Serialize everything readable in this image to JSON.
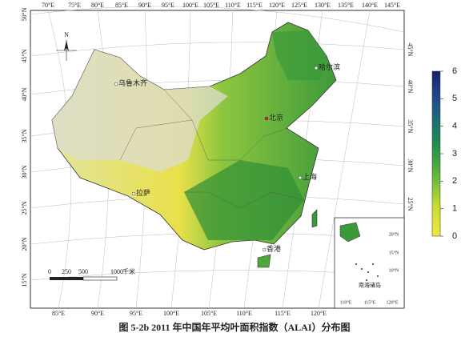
{
  "caption": "图 5-2b 2011 年中国年平均叶面积指数（ALAI）分布图",
  "north": "N",
  "longitude_top": [
    "70°E",
    "75°E",
    "80°E",
    "85°E",
    "90°E",
    "95°E",
    "100°E",
    "105°E",
    "110°E",
    "115°E",
    "120°E",
    "125°E",
    "130°E",
    "135°E",
    "140°E",
    "145°E"
  ],
  "longitude_bottom": [
    "85°E",
    "90°E",
    "95°E",
    "100°E",
    "105°E",
    "110°E",
    "115°E",
    "120°E"
  ],
  "latitude_left": [
    "50°N",
    "45°N",
    "40°N",
    "35°N",
    "30°N",
    "25°N",
    "20°N",
    "15°N"
  ],
  "latitude_right": [
    "45°N",
    "40°N",
    "35°N",
    "30°N",
    "25°N"
  ],
  "cities": [
    "乌鲁木齐",
    "哈尔滨",
    "北京",
    "上海",
    "拉萨",
    "香港"
  ],
  "scale_bar": [
    "0",
    "250",
    "500",
    "1000",
    "千米"
  ],
  "inset": {
    "label": "南海诸岛",
    "longitudes": [
      "110°E",
      "115°E",
      "120°E"
    ],
    "latitudes": [
      "20°N",
      "15°N",
      "10°N"
    ]
  },
  "colorbar": {
    "range": [
      0,
      6
    ],
    "ticks": [
      0,
      1,
      2,
      3,
      4,
      5,
      6
    ]
  }
}
